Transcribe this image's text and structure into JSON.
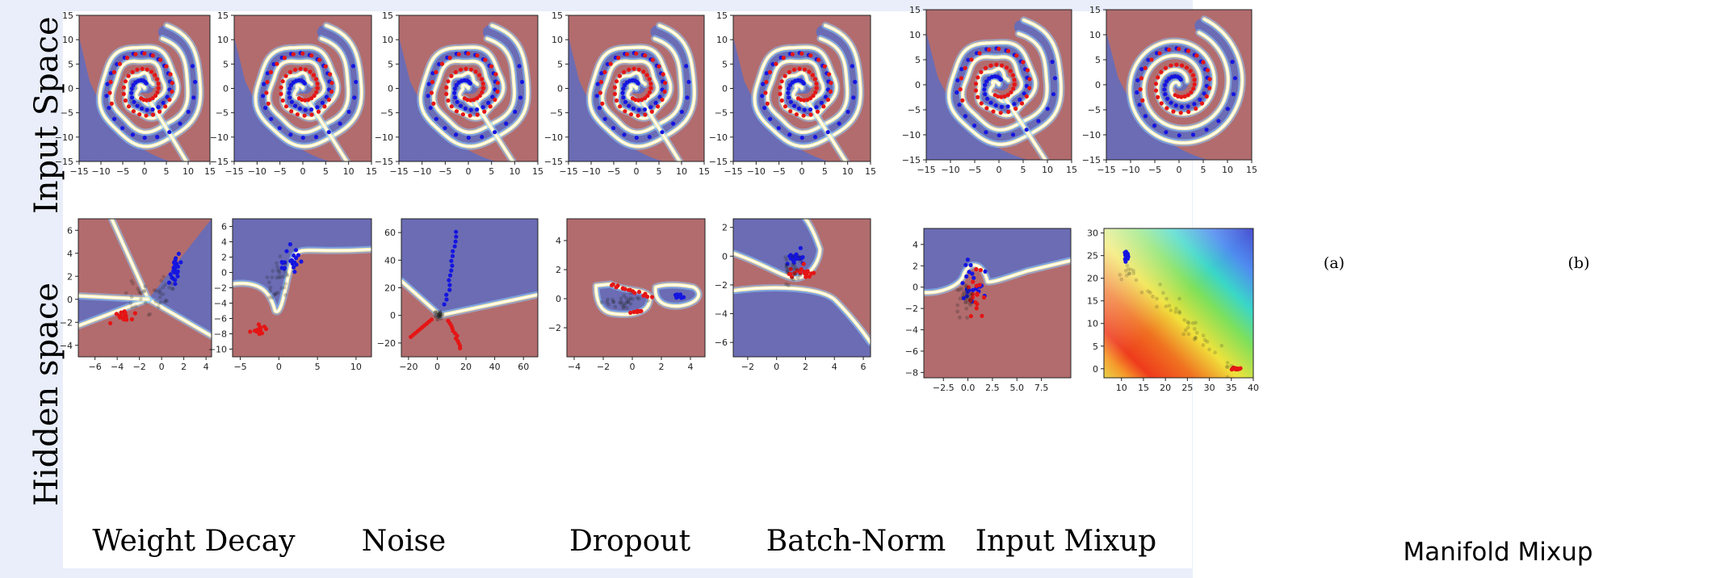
{
  "figure": {
    "row_labels": [
      "Input Space",
      "Hidden space"
    ],
    "column_labels": [
      "Weight Decay",
      "Noise",
      "Dropout",
      "Batch-Norm",
      "Input Mixup"
    ],
    "sub_labels": [
      "(a)",
      "(b)"
    ],
    "manifold_label": "Manifold Mixup"
  },
  "colors": {
    "class_a_region": "#6b6cb4",
    "class_b_region": "#b26c6e",
    "class_a_points": "#1515e0",
    "class_b_points": "#e51515",
    "hidden_points": "#222222"
  },
  "chart_data": [
    {
      "id": "input-weight-decay",
      "type": "scatter",
      "xlim": [
        -15,
        15
      ],
      "ylim": [
        -15,
        15
      ],
      "xticks": [
        -15,
        -10,
        -5,
        0,
        5,
        10,
        15
      ],
      "yticks": [
        -15,
        -10,
        -5,
        0,
        5,
        10,
        15
      ],
      "style": "spiral-sharp"
    },
    {
      "id": "input-noise",
      "type": "scatter",
      "xlim": [
        -15,
        15
      ],
      "ylim": [
        -15,
        15
      ],
      "xticks": [
        -15,
        -10,
        -5,
        0,
        5,
        10,
        15
      ],
      "yticks": [
        -15,
        -10,
        -5,
        0,
        5,
        10,
        15
      ],
      "style": "spiral-sharp"
    },
    {
      "id": "input-dropout",
      "type": "scatter",
      "xlim": [
        -15,
        15
      ],
      "ylim": [
        -15,
        15
      ],
      "xticks": [
        -15,
        -10,
        -5,
        0,
        5,
        10,
        15
      ],
      "yticks": [
        -15,
        -10,
        -5,
        0,
        5,
        10,
        15
      ],
      "style": "spiral-sharp"
    },
    {
      "id": "input-batch-norm",
      "type": "scatter",
      "xlim": [
        -15,
        15
      ],
      "ylim": [
        -15,
        15
      ],
      "xticks": [
        -15,
        -10,
        -5,
        0,
        5,
        10,
        15
      ],
      "yticks": [
        -15,
        -10,
        -5,
        0,
        5,
        10,
        15
      ],
      "style": "spiral-sharp"
    },
    {
      "id": "input-input-mixup",
      "type": "scatter",
      "xlim": [
        -15,
        15
      ],
      "ylim": [
        -15,
        15
      ],
      "xticks": [
        -15,
        -10,
        -5,
        0,
        5,
        10,
        15
      ],
      "yticks": [
        -15,
        -10,
        -5,
        0,
        5,
        10,
        15
      ],
      "style": "spiral-sharp"
    },
    {
      "id": "input-a",
      "type": "scatter",
      "xlim": [
        -15,
        15
      ],
      "ylim": [
        -15,
        15
      ],
      "xticks": [
        -15,
        -10,
        -5,
        0,
        5,
        10,
        15
      ],
      "yticks": [
        -15,
        -10,
        -5,
        0,
        5,
        10,
        15
      ],
      "style": "spiral-sharp"
    },
    {
      "id": "input-b",
      "type": "scatter",
      "xlim": [
        -15,
        15
      ],
      "ylim": [
        -15,
        15
      ],
      "xticks": [
        -15,
        -10,
        -5,
        0,
        5,
        10,
        15
      ],
      "yticks": [
        -15,
        -10,
        -5,
        0,
        5,
        10,
        15
      ],
      "style": "spiral-smooth"
    },
    {
      "id": "hidden-weight-decay",
      "type": "scatter",
      "xlim": [
        -7.5,
        4.5
      ],
      "ylim": [
        -5,
        7
      ],
      "xticks": [
        -6,
        -4,
        -2,
        0,
        2,
        4
      ],
      "yticks": [
        -4,
        -2,
        0,
        2,
        4,
        6
      ],
      "style": "wedge"
    },
    {
      "id": "hidden-noise",
      "type": "scatter",
      "xlim": [
        -6,
        12
      ],
      "ylim": [
        -11,
        7
      ],
      "xticks": [
        -5,
        0,
        5,
        10
      ],
      "yticks": [
        -10,
        -8,
        -6,
        -4,
        -2,
        0,
        2,
        4,
        6
      ],
      "style": "upper"
    },
    {
      "id": "hidden-dropout",
      "type": "scatter",
      "xlim": [
        -25,
        70
      ],
      "ylim": [
        -30,
        70
      ],
      "xticks": [
        -20,
        0,
        20,
        40,
        60
      ],
      "yticks": [
        -20,
        0,
        20,
        40,
        60
      ],
      "style": "cross"
    },
    {
      "id": "hidden-batch-norm",
      "type": "scatter",
      "xlim": [
        -4.5,
        5
      ],
      "ylim": [
        -4,
        5.5
      ],
      "xticks": [
        -4,
        -2,
        0,
        2,
        4
      ],
      "yticks": [
        -2,
        0,
        2,
        4
      ],
      "style": "blobs"
    },
    {
      "id": "hidden-input-mixup",
      "type": "scatter",
      "xlim": [
        -3,
        6.5
      ],
      "ylim": [
        -7,
        2.6
      ],
      "xticks": [
        -2,
        0,
        2,
        4,
        6
      ],
      "yticks": [
        -6,
        -4,
        -2,
        0,
        2
      ],
      "style": "band"
    },
    {
      "id": "hidden-manifold-a",
      "type": "scatter",
      "xlim": [
        -4.5,
        10.5
      ],
      "ylim": [
        -8.5,
        5.5
      ],
      "xticks": [
        -2.5,
        0.0,
        2.5,
        5.0,
        7.5
      ],
      "xtick_labels": [
        "-2.5",
        "0.0",
        "2.5",
        "5.0",
        "7.5"
      ],
      "yticks": [
        -8,
        -6,
        -4,
        -2,
        0,
        2,
        4
      ],
      "style": "manifold-a"
    },
    {
      "id": "hidden-manifold-b",
      "type": "scatter",
      "xlim": [
        6,
        40
      ],
      "ylim": [
        -2,
        31
      ],
      "xticks": [
        10,
        15,
        20,
        25,
        30,
        35,
        40
      ],
      "yticks": [
        0,
        5,
        10,
        15,
        20,
        25,
        30
      ],
      "style": "rainbow"
    }
  ]
}
